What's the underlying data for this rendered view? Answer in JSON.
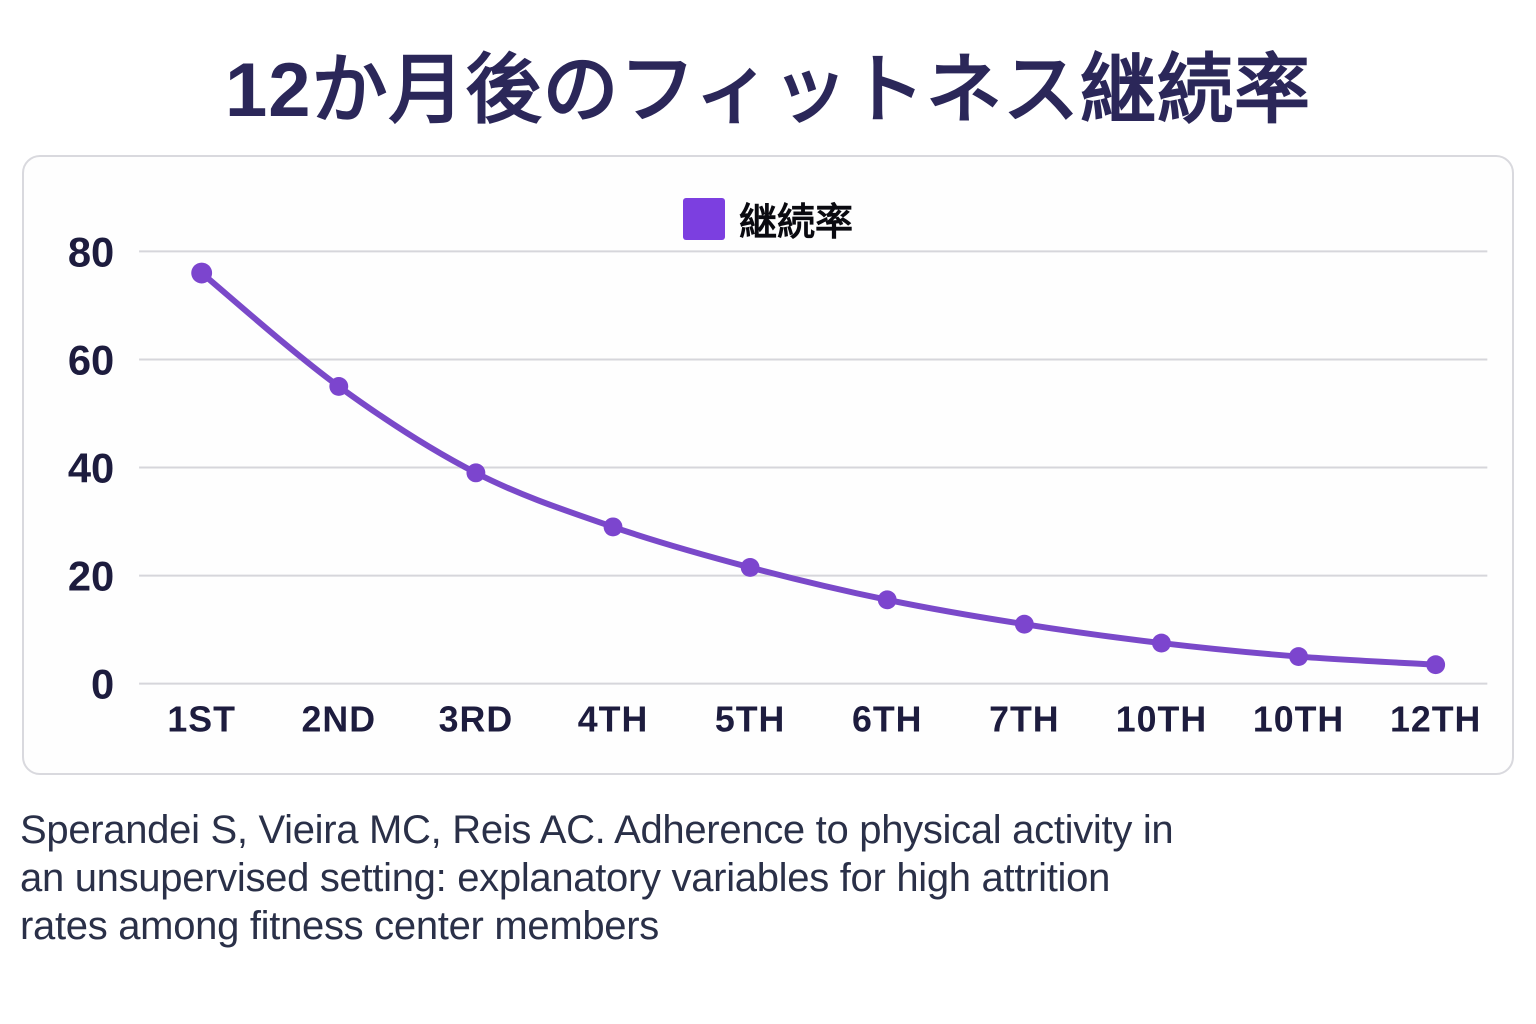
{
  "title": "12か月後のフィットネス継続率",
  "legend": {
    "label": "継続率",
    "color": "#7C3FE0"
  },
  "chart_data": {
    "type": "line",
    "title": "12か月後のフィットネス継続率",
    "categories": [
      "1ST",
      "2ND",
      "3RD",
      "4TH",
      "5TH",
      "6TH",
      "7TH",
      "10TH",
      "10TH",
      "12TH"
    ],
    "series": [
      {
        "name": "継続率",
        "values": [
          76,
          55,
          39,
          29,
          21.5,
          15.5,
          11,
          7.5,
          5,
          3.5
        ]
      }
    ],
    "xlabel": "",
    "ylabel": "",
    "ylim": [
      0,
      80
    ],
    "yticks": [
      0,
      20,
      40,
      60,
      80
    ],
    "grid": true,
    "legend_position": "top-center",
    "line_color": "#7A49C9",
    "point_color": "#7C45CE",
    "gridline_color": "#D6D6DB"
  },
  "citation": {
    "lines": [
      "Sperandei S, Vieira MC, Reis AC. Adherence to physical activity in",
      "an unsupervised setting: explanatory variables for high attrition",
      "rates among fitness center members"
    ]
  }
}
